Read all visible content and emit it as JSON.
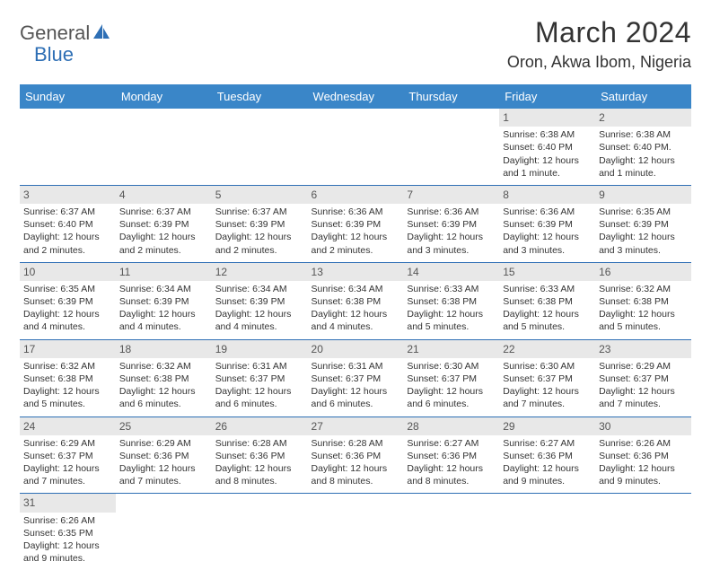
{
  "logo": {
    "part1": "General",
    "part2": "Blue"
  },
  "title": "March 2024",
  "location": "Oron, Akwa Ibom, Nigeria",
  "day_headers": [
    "Sunday",
    "Monday",
    "Tuesday",
    "Wednesday",
    "Thursday",
    "Friday",
    "Saturday"
  ],
  "colors": {
    "header_bg": "#3a86c8",
    "divider": "#2e6fb5",
    "daynum_bg": "#e8e8e8"
  },
  "weeks": [
    [
      null,
      null,
      null,
      null,
      null,
      {
        "n": "1",
        "sr": "Sunrise: 6:38 AM",
        "ss": "Sunset: 6:40 PM",
        "dl": "Daylight: 12 hours and 1 minute."
      },
      {
        "n": "2",
        "sr": "Sunrise: 6:38 AM",
        "ss": "Sunset: 6:40 PM.",
        "dl": "Daylight: 12 hours and 1 minute."
      }
    ],
    [
      {
        "n": "3",
        "sr": "Sunrise: 6:37 AM",
        "ss": "Sunset: 6:40 PM",
        "dl": "Daylight: 12 hours and 2 minutes."
      },
      {
        "n": "4",
        "sr": "Sunrise: 6:37 AM",
        "ss": "Sunset: 6:39 PM",
        "dl": "Daylight: 12 hours and 2 minutes."
      },
      {
        "n": "5",
        "sr": "Sunrise: 6:37 AM",
        "ss": "Sunset: 6:39 PM",
        "dl": "Daylight: 12 hours and 2 minutes."
      },
      {
        "n": "6",
        "sr": "Sunrise: 6:36 AM",
        "ss": "Sunset: 6:39 PM",
        "dl": "Daylight: 12 hours and 2 minutes."
      },
      {
        "n": "7",
        "sr": "Sunrise: 6:36 AM",
        "ss": "Sunset: 6:39 PM",
        "dl": "Daylight: 12 hours and 3 minutes."
      },
      {
        "n": "8",
        "sr": "Sunrise: 6:36 AM",
        "ss": "Sunset: 6:39 PM",
        "dl": "Daylight: 12 hours and 3 minutes."
      },
      {
        "n": "9",
        "sr": "Sunrise: 6:35 AM",
        "ss": "Sunset: 6:39 PM",
        "dl": "Daylight: 12 hours and 3 minutes."
      }
    ],
    [
      {
        "n": "10",
        "sr": "Sunrise: 6:35 AM",
        "ss": "Sunset: 6:39 PM",
        "dl": "Daylight: 12 hours and 4 minutes."
      },
      {
        "n": "11",
        "sr": "Sunrise: 6:34 AM",
        "ss": "Sunset: 6:39 PM",
        "dl": "Daylight: 12 hours and 4 minutes."
      },
      {
        "n": "12",
        "sr": "Sunrise: 6:34 AM",
        "ss": "Sunset: 6:39 PM",
        "dl": "Daylight: 12 hours and 4 minutes."
      },
      {
        "n": "13",
        "sr": "Sunrise: 6:34 AM",
        "ss": "Sunset: 6:38 PM",
        "dl": "Daylight: 12 hours and 4 minutes."
      },
      {
        "n": "14",
        "sr": "Sunrise: 6:33 AM",
        "ss": "Sunset: 6:38 PM",
        "dl": "Daylight: 12 hours and 5 minutes."
      },
      {
        "n": "15",
        "sr": "Sunrise: 6:33 AM",
        "ss": "Sunset: 6:38 PM",
        "dl": "Daylight: 12 hours and 5 minutes."
      },
      {
        "n": "16",
        "sr": "Sunrise: 6:32 AM",
        "ss": "Sunset: 6:38 PM",
        "dl": "Daylight: 12 hours and 5 minutes."
      }
    ],
    [
      {
        "n": "17",
        "sr": "Sunrise: 6:32 AM",
        "ss": "Sunset: 6:38 PM",
        "dl": "Daylight: 12 hours and 5 minutes."
      },
      {
        "n": "18",
        "sr": "Sunrise: 6:32 AM",
        "ss": "Sunset: 6:38 PM",
        "dl": "Daylight: 12 hours and 6 minutes."
      },
      {
        "n": "19",
        "sr": "Sunrise: 6:31 AM",
        "ss": "Sunset: 6:37 PM",
        "dl": "Daylight: 12 hours and 6 minutes."
      },
      {
        "n": "20",
        "sr": "Sunrise: 6:31 AM",
        "ss": "Sunset: 6:37 PM",
        "dl": "Daylight: 12 hours and 6 minutes."
      },
      {
        "n": "21",
        "sr": "Sunrise: 6:30 AM",
        "ss": "Sunset: 6:37 PM",
        "dl": "Daylight: 12 hours and 6 minutes."
      },
      {
        "n": "22",
        "sr": "Sunrise: 6:30 AM",
        "ss": "Sunset: 6:37 PM",
        "dl": "Daylight: 12 hours and 7 minutes."
      },
      {
        "n": "23",
        "sr": "Sunrise: 6:29 AM",
        "ss": "Sunset: 6:37 PM",
        "dl": "Daylight: 12 hours and 7 minutes."
      }
    ],
    [
      {
        "n": "24",
        "sr": "Sunrise: 6:29 AM",
        "ss": "Sunset: 6:37 PM",
        "dl": "Daylight: 12 hours and 7 minutes."
      },
      {
        "n": "25",
        "sr": "Sunrise: 6:29 AM",
        "ss": "Sunset: 6:36 PM",
        "dl": "Daylight: 12 hours and 7 minutes."
      },
      {
        "n": "26",
        "sr": "Sunrise: 6:28 AM",
        "ss": "Sunset: 6:36 PM",
        "dl": "Daylight: 12 hours and 8 minutes."
      },
      {
        "n": "27",
        "sr": "Sunrise: 6:28 AM",
        "ss": "Sunset: 6:36 PM",
        "dl": "Daylight: 12 hours and 8 minutes."
      },
      {
        "n": "28",
        "sr": "Sunrise: 6:27 AM",
        "ss": "Sunset: 6:36 PM",
        "dl": "Daylight: 12 hours and 8 minutes."
      },
      {
        "n": "29",
        "sr": "Sunrise: 6:27 AM",
        "ss": "Sunset: 6:36 PM",
        "dl": "Daylight: 12 hours and 9 minutes."
      },
      {
        "n": "30",
        "sr": "Sunrise: 6:26 AM",
        "ss": "Sunset: 6:36 PM",
        "dl": "Daylight: 12 hours and 9 minutes."
      }
    ],
    [
      {
        "n": "31",
        "sr": "Sunrise: 6:26 AM",
        "ss": "Sunset: 6:35 PM",
        "dl": "Daylight: 12 hours and 9 minutes."
      },
      null,
      null,
      null,
      null,
      null,
      null
    ]
  ]
}
